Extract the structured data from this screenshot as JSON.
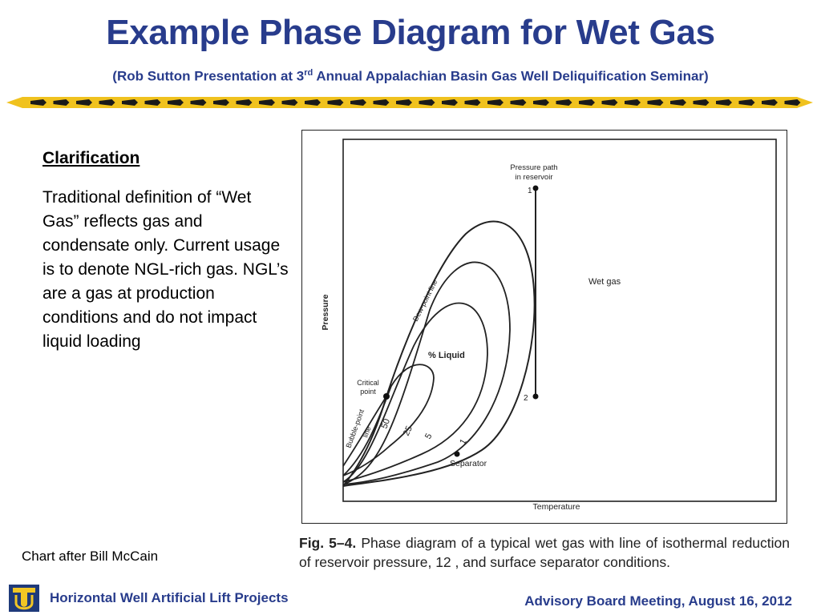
{
  "slide": {
    "title": "Example Phase Diagram for Wet Gas",
    "subtitle_pre": "(Rob Sutton Presentation at 3",
    "subtitle_sup": "rd",
    "subtitle_post": " Annual Appalachian Basin Gas Well Deliquification Seminar)"
  },
  "clarification": {
    "heading": "Clarification",
    "body": "Traditional definition of “Wet Gas” reflects gas and condensate only. Current usage is to denote NGL-rich gas.  NGL’s are a gas at production conditions and do not impact liquid loading"
  },
  "credit": "Chart after Bill McCain",
  "diagram": {
    "pressure_path_label_1": "Pressure path",
    "pressure_path_label_2": "in reservoir",
    "point_1": "1",
    "point_2": "2",
    "wet_gas_label": "Wet gas",
    "dew_point_label": "Dew-point line",
    "percent_liquid_label": "% Liquid",
    "critical_point_label_1": "Critical",
    "critical_point_label_2": "point",
    "bubble_point_label_1": "Bubble-point",
    "bubble_point_label_2": "line",
    "separator_label": "Separator",
    "x_axis_label": "Temperature",
    "y_axis_label": "Pressure",
    "quality_labels": [
      "50",
      "25",
      "5",
      "1"
    ]
  },
  "caption": {
    "figure_number": "Fig. 5–4.",
    "text": " Phase diagram of a typical wet gas with line of isothermal reduction of reservoir pressure, 12 , and surface separator conditions."
  },
  "footer": {
    "left": "Horizontal Well Artificial Lift Projects",
    "right": "Advisory Board Meeting, August 16, 2012",
    "logo": "tu-logo-icon"
  },
  "colors": {
    "title": "#283c8c",
    "divider_gold": "#f0c21e",
    "logo_gold": "#f2c624"
  }
}
